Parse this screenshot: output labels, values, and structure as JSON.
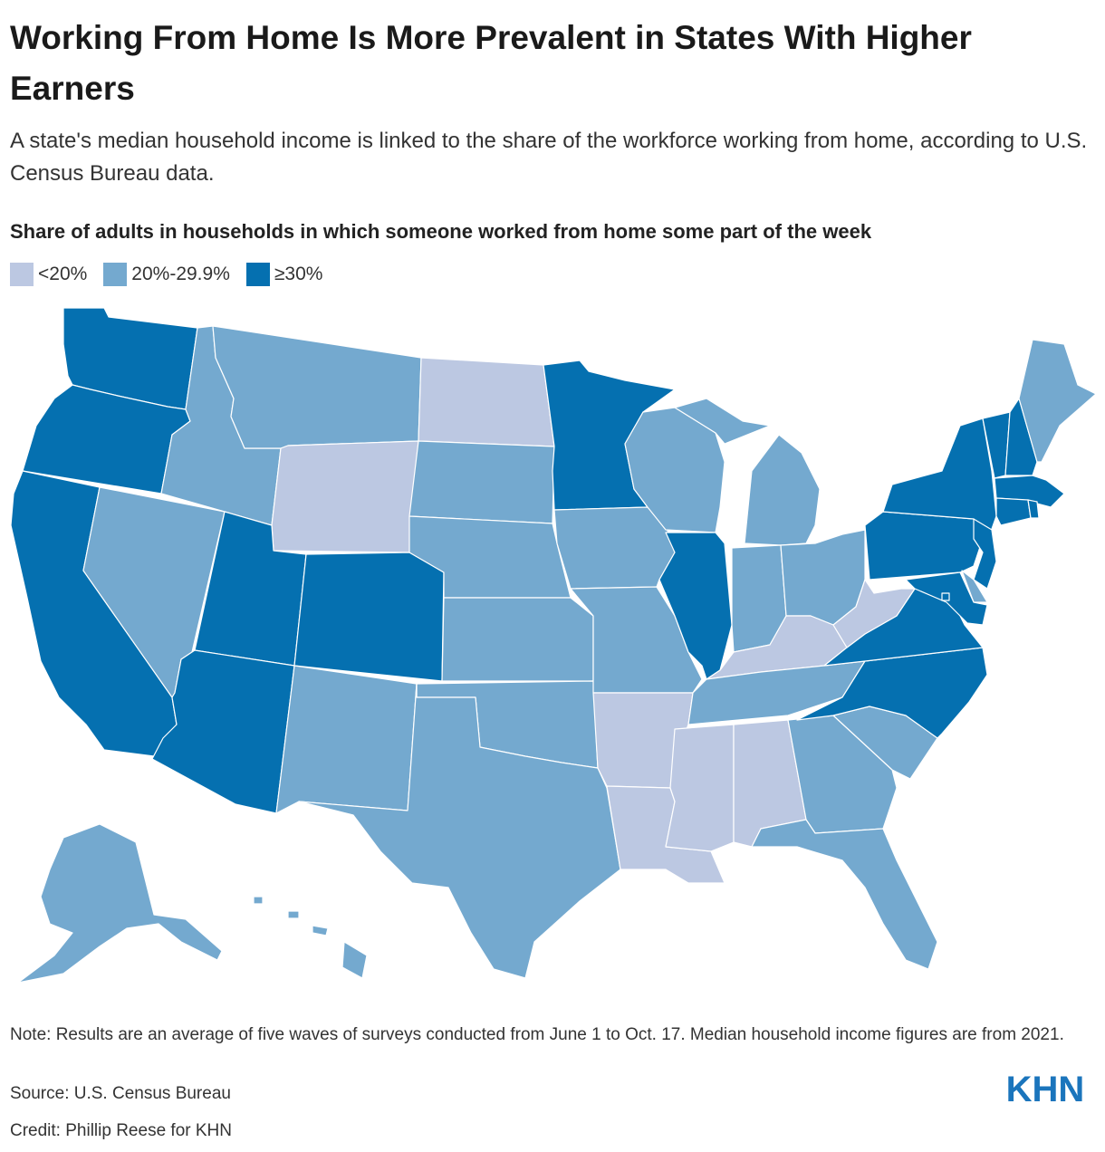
{
  "title": "Working From Home Is More Prevalent in States With Higher Earners",
  "subtitle": "A state's median household income is linked to the share of the workforce working from home, according to U.S. Census Bureau data.",
  "map_heading": "Share of adults in households in which someone worked from home some part of the week",
  "legend": [
    {
      "label": "<20%",
      "color": "#bcc8e2",
      "icon": "legend-swatch-low"
    },
    {
      "label": "20%-29.9%",
      "color": "#74a9cf",
      "icon": "legend-swatch-mid"
    },
    {
      "label": "≥30%",
      "color": "#0570b0",
      "icon": "legend-swatch-high"
    }
  ],
  "map_data": {
    "type": "choropleth",
    "categories": [
      "<20%",
      "20%-29.9%",
      "≥30%"
    ],
    "states": {
      "WA": "≥30%",
      "OR": "≥30%",
      "CA": "≥30%",
      "NV": "20%-29.9%",
      "ID": "20%-29.9%",
      "MT": "20%-29.9%",
      "WY": "<20%",
      "UT": "≥30%",
      "AZ": "≥30%",
      "CO": "≥30%",
      "NM": "20%-29.9%",
      "ND": "<20%",
      "SD": "20%-29.9%",
      "NE": "20%-29.9%",
      "KS": "20%-29.9%",
      "OK": "20%-29.9%",
      "TX": "20%-29.9%",
      "MN": "≥30%",
      "IA": "20%-29.9%",
      "MO": "20%-29.9%",
      "AR": "<20%",
      "LA": "<20%",
      "WI": "20%-29.9%",
      "IL": "≥30%",
      "MI": "20%-29.9%",
      "IN": "20%-29.9%",
      "OH": "20%-29.9%",
      "KY": "<20%",
      "TN": "20%-29.9%",
      "MS": "<20%",
      "AL": "<20%",
      "GA": "20%-29.9%",
      "FL": "20%-29.9%",
      "SC": "20%-29.9%",
      "NC": "≥30%",
      "VA": "≥30%",
      "WV": "<20%",
      "PA": "≥30%",
      "NY": "≥30%",
      "VT": "≥30%",
      "NH": "≥30%",
      "ME": "20%-29.9%",
      "MA": "≥30%",
      "RI": "≥30%",
      "CT": "≥30%",
      "NJ": "≥30%",
      "DE": "20%-29.9%",
      "MD": "≥30%",
      "DC": "≥30%",
      "AK": "20%-29.9%",
      "HI": "20%-29.9%"
    }
  },
  "footer": {
    "note": "Note: Results are an average of five waves of surveys conducted from June 1 to Oct. 17. Median household income figures are from 2021.",
    "source": "Source: U.S. Census Bureau",
    "credit": "Credit: Phillip Reese for KHN",
    "logo_text": "KHN",
    "logo_color": "#1b75bc"
  }
}
